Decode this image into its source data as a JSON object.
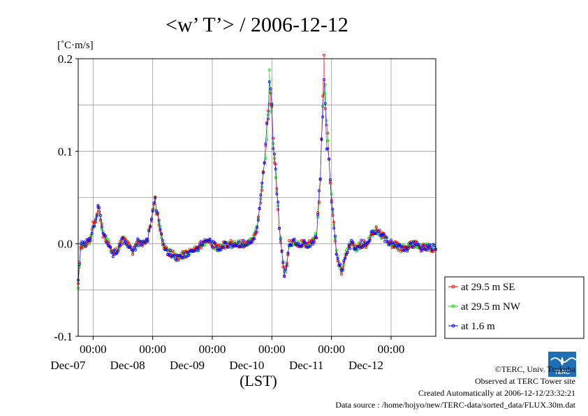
{
  "chart_data": {
    "type": "line",
    "title": "<w’ T’> / 2006-12-12",
    "ylabel_unit": "[˚C·m/s]",
    "xlabel": "(LST)",
    "ylim": [
      -0.1,
      0.2
    ],
    "xlim": [
      0,
      144
    ],
    "x_unit": "hours since 2006-12-06 18:00 LST",
    "yticks": [
      {
        "value": 0.2,
        "label": "0.2"
      },
      {
        "value": 0.1,
        "label": "0.1"
      },
      {
        "value": 0.0,
        "label": "0.0"
      },
      {
        "value": -0.1,
        "label": "-0.1"
      }
    ],
    "xticks": [
      {
        "value": 6,
        "time": "00:00",
        "date": "Dec-07"
      },
      {
        "value": 30,
        "time": "00:00",
        "date": "Dec-08"
      },
      {
        "value": 54,
        "time": "00:00",
        "date": "Dec-09"
      },
      {
        "value": 78,
        "time": "00:00",
        "date": "Dec-10"
      },
      {
        "value": 102,
        "time": "00:00",
        "date": "Dec-11"
      },
      {
        "value": 126,
        "time": "00:00",
        "date": "Dec-12"
      }
    ],
    "grid": true,
    "legend_position": "right, outside plot",
    "series": [
      {
        "name": "at 29.5 m SE",
        "color": "#ff0000"
      },
      {
        "name": "at 29.5 m NW",
        "color": "#00e000"
      },
      {
        "name": "at 1.6 m",
        "color": "#0000ff"
      }
    ],
    "key_points": [
      [
        0,
        -0.045
      ],
      [
        1,
        -0.002
      ],
      [
        3,
        0.0
      ],
      [
        5,
        0.005
      ],
      [
        6,
        0.02
      ],
      [
        7,
        0.025
      ],
      [
        8,
        0.04
      ],
      [
        9,
        0.028
      ],
      [
        10,
        0.01
      ],
      [
        12,
        0.002
      ],
      [
        14,
        -0.012
      ],
      [
        16,
        -0.005
      ],
      [
        18,
        0.005
      ],
      [
        20,
        0.0
      ],
      [
        22,
        -0.01
      ],
      [
        24,
        0.002
      ],
      [
        26,
        0.0
      ],
      [
        28,
        0.005
      ],
      [
        30,
        0.035
      ],
      [
        31,
        0.045
      ],
      [
        32,
        0.03
      ],
      [
        34,
        0.0
      ],
      [
        36,
        -0.008
      ],
      [
        40,
        -0.015
      ],
      [
        44,
        -0.01
      ],
      [
        48,
        -0.005
      ],
      [
        50,
        0.0
      ],
      [
        52,
        0.005
      ],
      [
        54,
        0.0
      ],
      [
        56,
        -0.005
      ],
      [
        60,
        0.0
      ],
      [
        64,
        0.0
      ],
      [
        68,
        0.0
      ],
      [
        70,
        0.002
      ],
      [
        72,
        0.015
      ],
      [
        74,
        0.06
      ],
      [
        75,
        0.08
      ],
      [
        76,
        0.12
      ],
      [
        77,
        0.165
      ],
      [
        78,
        0.14
      ],
      [
        79,
        0.1
      ],
      [
        80,
        0.06
      ],
      [
        81,
        0.02
      ],
      [
        82,
        -0.01
      ],
      [
        83,
        -0.035
      ],
      [
        84,
        -0.02
      ],
      [
        85,
        0.0
      ],
      [
        86,
        0.002
      ],
      [
        90,
        0.0
      ],
      [
        94,
        0.0
      ],
      [
        96,
        0.01
      ],
      [
        97,
        0.05
      ],
      [
        98,
        0.1
      ],
      [
        99,
        0.19
      ],
      [
        100,
        0.12
      ],
      [
        101,
        0.09
      ],
      [
        102,
        0.05
      ],
      [
        103,
        0.02
      ],
      [
        104,
        -0.01
      ],
      [
        106,
        -0.03
      ],
      [
        108,
        -0.01
      ],
      [
        110,
        0.0
      ],
      [
        112,
        -0.005
      ],
      [
        114,
        0.0
      ],
      [
        116,
        0.0
      ],
      [
        118,
        0.01
      ],
      [
        120,
        0.015
      ],
      [
        122,
        0.01
      ],
      [
        124,
        0.005
      ],
      [
        126,
        0.0
      ],
      [
        128,
        -0.002
      ],
      [
        130,
        -0.005
      ],
      [
        132,
        -0.005
      ],
      [
        134,
        0.0
      ],
      [
        136,
        0.0
      ],
      [
        138,
        -0.005
      ],
      [
        140,
        -0.003
      ],
      [
        144,
        -0.005
      ]
    ]
  },
  "credits": [
    "©TERC, Univ. Tsukuba",
    "Observed at TERC Tower site",
    "Created Automatically at 2006-12-12/23:32:21",
    "Data source : /home/hojyo/new/TERC-data/sorted_data/FLUX.30m.dat"
  ],
  "logo_text": "TERC"
}
